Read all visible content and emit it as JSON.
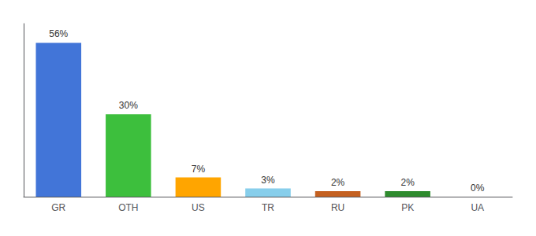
{
  "chart_data": {
    "type": "bar",
    "categories": [
      "GR",
      "OTH",
      "US",
      "TR",
      "RU",
      "PK",
      "UA"
    ],
    "values": [
      56,
      30,
      7,
      3,
      2,
      2,
      0
    ],
    "value_labels": [
      "56%",
      "30%",
      "7%",
      "3%",
      "2%",
      "2%",
      "0%"
    ],
    "colors": [
      "#4275D8",
      "#3DBF3D",
      "#FFA500",
      "#87CEEB",
      "#C46020",
      "#2E8B2E",
      "#D3D3D3"
    ],
    "ylim": [
      0,
      63
    ],
    "data_labels": true,
    "tick_labels": "x",
    "grid": false
  }
}
